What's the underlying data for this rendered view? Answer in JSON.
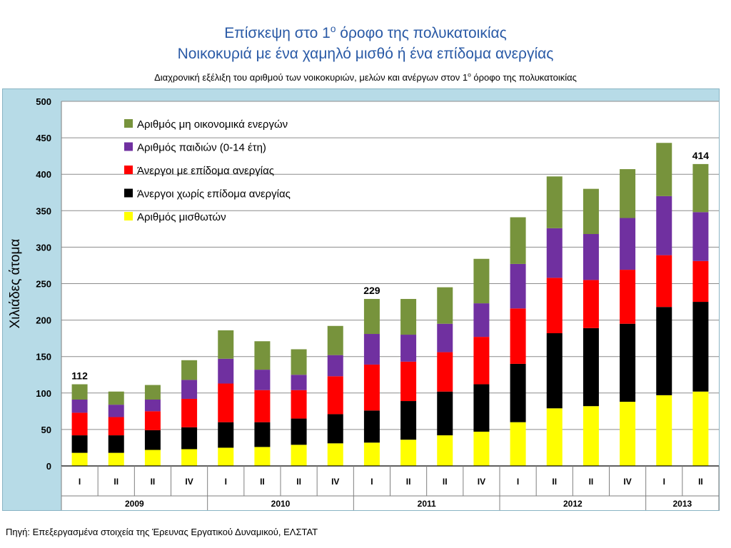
{
  "title_line1": "Επίσκεψη στο 1",
  "title_line1_sup": "ο",
  "title_line1_end": " όροφο της πολυκατοικίας",
  "title_line2": "Νοικοκυριά με ένα χαμηλό μισθό ή ένα επίδομα ανεργίας",
  "subtitle_start": "Διαχρονική εξέλιξη του αριθμού των νοικοκυριών, μελών και ανέργων στον 1",
  "subtitle_sup": "ο",
  "subtitle_end": " όροφο της πολυκατοικίας",
  "source": "Πηγή: Επεξεργασμένα στοιχεία της Έρευνας Εργατικού Δυναμικού, ΕΛΣΤΑΤ",
  "chart_data": {
    "type": "bar",
    "stacked": true,
    "ylabel": "Χιλιάδες άτομα",
    "ylim": [
      0,
      500
    ],
    "yticks": [
      0,
      50,
      100,
      150,
      200,
      250,
      300,
      350,
      400,
      450,
      500
    ],
    "grid": true,
    "legend_position": "top-left",
    "categories": [
      "I",
      "II",
      "II",
      "IV",
      "I",
      "II",
      "II",
      "IV",
      "I",
      "II",
      "II",
      "IV",
      "I",
      "II",
      "II",
      "IV",
      "I",
      "II"
    ],
    "year_groups": [
      {
        "label": "2009",
        "count": 4
      },
      {
        "label": "2010",
        "count": 4
      },
      {
        "label": "2011",
        "count": 4
      },
      {
        "label": "2012",
        "count": 4
      },
      {
        "label": "2013",
        "count": 2
      }
    ],
    "series": [
      {
        "name": "Αριθμός μισθωτών",
        "color": "#ffff00",
        "values": [
          18,
          18,
          22,
          23,
          25,
          26,
          29,
          31,
          32,
          36,
          42,
          47,
          60,
          79,
          82,
          88,
          97,
          102
        ]
      },
      {
        "name": "Άνεργοι χωρίς επίδομα ανεργίας",
        "color": "#000000",
        "values": [
          24,
          24,
          27,
          30,
          35,
          34,
          36,
          40,
          44,
          53,
          60,
          65,
          80,
          103,
          107,
          107,
          121,
          123
        ]
      },
      {
        "name": "Άνεργοι με επίδομα ανεργίας",
        "color": "#ff0000",
        "values": [
          31,
          25,
          26,
          39,
          53,
          44,
          39,
          52,
          63,
          54,
          54,
          65,
          76,
          76,
          66,
          74,
          71,
          56
        ]
      },
      {
        "name": "Αριθμός παιδιών (0-14 έτη)",
        "color": "#7030a0",
        "values": [
          18,
          17,
          16,
          26,
          34,
          28,
          21,
          29,
          42,
          37,
          39,
          46,
          61,
          68,
          63,
          71,
          81,
          67
        ]
      },
      {
        "name": "Αριθμός μη οικονομικά ενεργών",
        "color": "#77933c",
        "values": [
          21,
          18,
          20,
          27,
          39,
          39,
          35,
          40,
          48,
          49,
          50,
          61,
          64,
          71,
          62,
          67,
          73,
          66
        ]
      }
    ],
    "data_labels": [
      {
        "index": 0,
        "text": "112"
      },
      {
        "index": 8,
        "text": "229"
      },
      {
        "index": 17,
        "text": "414"
      }
    ]
  }
}
